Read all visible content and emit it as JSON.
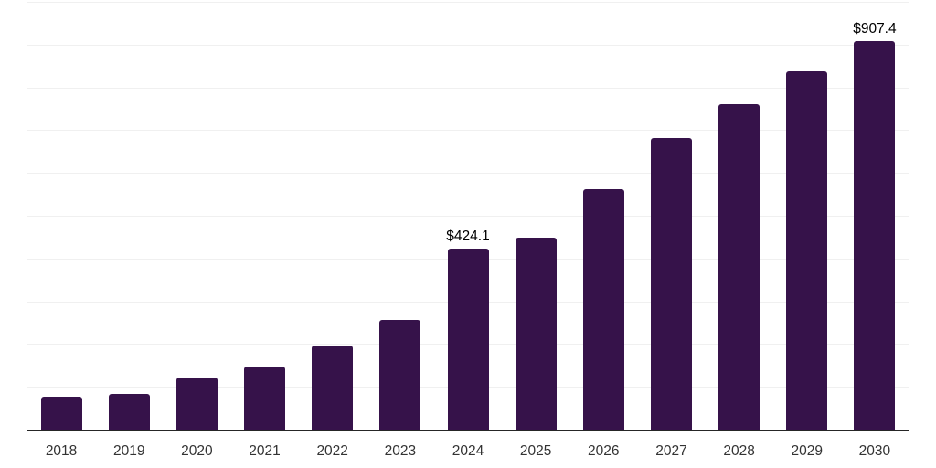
{
  "chart_data": {
    "type": "bar",
    "title": "",
    "xlabel": "",
    "ylabel": "",
    "categories": [
      "2018",
      "2019",
      "2020",
      "2021",
      "2022",
      "2023",
      "2024",
      "2025",
      "2026",
      "2027",
      "2028",
      "2029",
      "2030"
    ],
    "values": [
      76,
      83,
      121,
      148,
      197,
      257,
      424.1,
      449,
      563,
      681,
      760,
      837,
      907.4
    ],
    "value_labels": [
      {
        "category": "2024",
        "text": "$424.1"
      },
      {
        "category": "2030",
        "text": "$907.4"
      }
    ],
    "ylim": [
      0,
      1000
    ],
    "gridline_step": 100,
    "grid": "horizontal-only",
    "y_tick_labels_visible": false,
    "legend_position": "none",
    "bar_color": "#36124a",
    "gridline_color": "#f0f0f0",
    "axis_line_color": "#262626",
    "x_label_color": "#333333",
    "value_label_color": "#000000",
    "background_color": "#ffffff"
  }
}
